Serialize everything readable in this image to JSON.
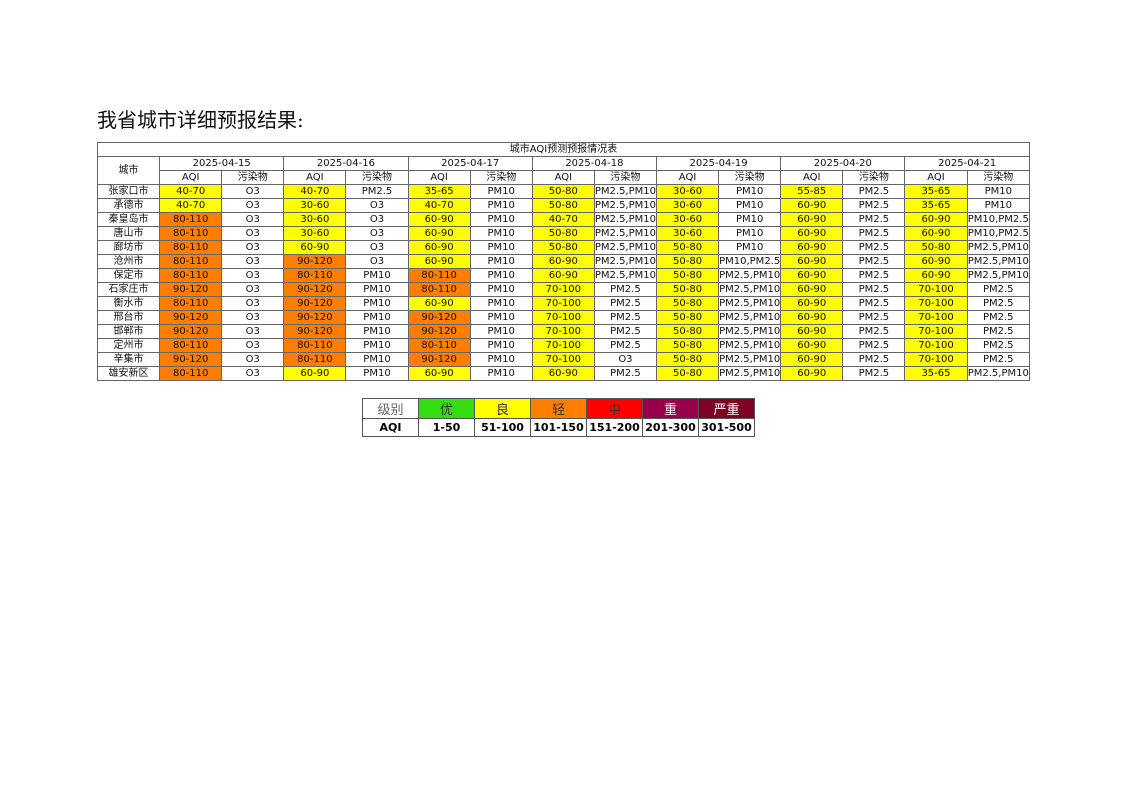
{
  "heading": "我省城市详细预报结果:",
  "table": {
    "title": "城市AQI预测预报情况表",
    "city_header": "城市",
    "dates": [
      "2025-04-15",
      "2025-04-16",
      "2025-04-17",
      "2025-04-18",
      "2025-04-19",
      "2025-04-20",
      "2025-04-21"
    ],
    "subheaders": [
      "AQI",
      "污染物"
    ],
    "rows": [
      {
        "city": "张家口市",
        "cells": [
          [
            "40-70",
            "O3"
          ],
          [
            "40-70",
            "PM2.5"
          ],
          [
            "35-65",
            "PM10"
          ],
          [
            "50-80",
            "PM2.5,PM10"
          ],
          [
            "30-60",
            "PM10"
          ],
          [
            "55-85",
            "PM2.5"
          ],
          [
            "35-65",
            "PM10"
          ]
        ]
      },
      {
        "city": "承德市",
        "cells": [
          [
            "40-70",
            "O3"
          ],
          [
            "30-60",
            "O3"
          ],
          [
            "40-70",
            "PM10"
          ],
          [
            "50-80",
            "PM2.5,PM10"
          ],
          [
            "30-60",
            "PM10"
          ],
          [
            "60-90",
            "PM2.5"
          ],
          [
            "35-65",
            "PM10"
          ]
        ]
      },
      {
        "city": "秦皇岛市",
        "cells": [
          [
            "80-110",
            "O3"
          ],
          [
            "30-60",
            "O3"
          ],
          [
            "60-90",
            "PM10"
          ],
          [
            "40-70",
            "PM2.5,PM10"
          ],
          [
            "30-60",
            "PM10"
          ],
          [
            "60-90",
            "PM2.5"
          ],
          [
            "60-90",
            "PM10,PM2.5"
          ]
        ]
      },
      {
        "city": "唐山市",
        "cells": [
          [
            "80-110",
            "O3"
          ],
          [
            "30-60",
            "O3"
          ],
          [
            "60-90",
            "PM10"
          ],
          [
            "50-80",
            "PM2.5,PM10"
          ],
          [
            "30-60",
            "PM10"
          ],
          [
            "60-90",
            "PM2.5"
          ],
          [
            "60-90",
            "PM10,PM2.5"
          ]
        ]
      },
      {
        "city": "廊坊市",
        "cells": [
          [
            "80-110",
            "O3"
          ],
          [
            "60-90",
            "O3"
          ],
          [
            "60-90",
            "PM10"
          ],
          [
            "50-80",
            "PM2.5,PM10"
          ],
          [
            "50-80",
            "PM10"
          ],
          [
            "60-90",
            "PM2.5"
          ],
          [
            "50-80",
            "PM2.5,PM10"
          ]
        ]
      },
      {
        "city": "沧州市",
        "cells": [
          [
            "80-110",
            "O3"
          ],
          [
            "90-120",
            "O3"
          ],
          [
            "60-90",
            "PM10"
          ],
          [
            "60-90",
            "PM2.5,PM10"
          ],
          [
            "50-80",
            "PM10,PM2.5"
          ],
          [
            "60-90",
            "PM2.5"
          ],
          [
            "60-90",
            "PM2.5,PM10"
          ]
        ]
      },
      {
        "city": "保定市",
        "cells": [
          [
            "80-110",
            "O3"
          ],
          [
            "80-110",
            "PM10"
          ],
          [
            "80-110",
            "PM10"
          ],
          [
            "60-90",
            "PM2.5,PM10"
          ],
          [
            "50-80",
            "PM2.5,PM10"
          ],
          [
            "60-90",
            "PM2.5"
          ],
          [
            "60-90",
            "PM2.5,PM10"
          ]
        ]
      },
      {
        "city": "石家庄市",
        "cells": [
          [
            "90-120",
            "O3"
          ],
          [
            "90-120",
            "PM10"
          ],
          [
            "80-110",
            "PM10"
          ],
          [
            "70-100",
            "PM2.5"
          ],
          [
            "50-80",
            "PM2.5,PM10"
          ],
          [
            "60-90",
            "PM2.5"
          ],
          [
            "70-100",
            "PM2.5"
          ]
        ]
      },
      {
        "city": "衡水市",
        "cells": [
          [
            "80-110",
            "O3"
          ],
          [
            "90-120",
            "PM10"
          ],
          [
            "60-90",
            "PM10"
          ],
          [
            "70-100",
            "PM2.5"
          ],
          [
            "50-80",
            "PM2.5,PM10"
          ],
          [
            "60-90",
            "PM2.5"
          ],
          [
            "70-100",
            "PM2.5"
          ]
        ]
      },
      {
        "city": "邢台市",
        "cells": [
          [
            "90-120",
            "O3"
          ],
          [
            "90-120",
            "PM10"
          ],
          [
            "90-120",
            "PM10"
          ],
          [
            "70-100",
            "PM2.5"
          ],
          [
            "50-80",
            "PM2.5,PM10"
          ],
          [
            "60-90",
            "PM2.5"
          ],
          [
            "70-100",
            "PM2.5"
          ]
        ]
      },
      {
        "city": "邯郸市",
        "cells": [
          [
            "90-120",
            "O3"
          ],
          [
            "90-120",
            "PM10"
          ],
          [
            "90-120",
            "PM10"
          ],
          [
            "70-100",
            "PM2.5"
          ],
          [
            "50-80",
            "PM2.5,PM10"
          ],
          [
            "60-90",
            "PM2.5"
          ],
          [
            "70-100",
            "PM2.5"
          ]
        ]
      },
      {
        "city": "定州市",
        "cells": [
          [
            "80-110",
            "O3"
          ],
          [
            "80-110",
            "PM10"
          ],
          [
            "80-110",
            "PM10"
          ],
          [
            "70-100",
            "PM2.5"
          ],
          [
            "50-80",
            "PM2.5,PM10"
          ],
          [
            "60-90",
            "PM2.5"
          ],
          [
            "70-100",
            "PM2.5"
          ]
        ]
      },
      {
        "city": "辛集市",
        "cells": [
          [
            "90-120",
            "O3"
          ],
          [
            "80-110",
            "PM10"
          ],
          [
            "90-120",
            "PM10"
          ],
          [
            "70-100",
            "O3"
          ],
          [
            "50-80",
            "PM2.5,PM10"
          ],
          [
            "60-90",
            "PM2.5"
          ],
          [
            "70-100",
            "PM2.5"
          ]
        ]
      },
      {
        "city": "雄安新区",
        "cells": [
          [
            "80-110",
            "O3"
          ],
          [
            "60-90",
            "PM10"
          ],
          [
            "60-90",
            "PM10"
          ],
          [
            "60-90",
            "PM2.5"
          ],
          [
            "50-80",
            "PM2.5,PM10"
          ],
          [
            "60-90",
            "PM2.5"
          ],
          [
            "35-65",
            "PM2.5,PM10"
          ]
        ]
      }
    ]
  },
  "legend": {
    "header": "级别",
    "row_label": "AQI",
    "levels": [
      {
        "name": "优",
        "range": "1-50",
        "color": "#33dd11",
        "text_color": "#333333"
      },
      {
        "name": "良",
        "range": "51-100",
        "color": "#ffff00",
        "text_color": "#333333"
      },
      {
        "name": "轻",
        "range": "101-150",
        "color": "#ff7e00",
        "text_color": "#333333"
      },
      {
        "name": "中",
        "range": "151-200",
        "color": "#ff0000",
        "text_color": "#333333"
      },
      {
        "name": "重",
        "range": "201-300",
        "color": "#99004c",
        "text_color": "#ffffff"
      },
      {
        "name": "严重",
        "range": "301-500",
        "color": "#7e0023",
        "text_color": "#ffffff"
      }
    ]
  }
}
